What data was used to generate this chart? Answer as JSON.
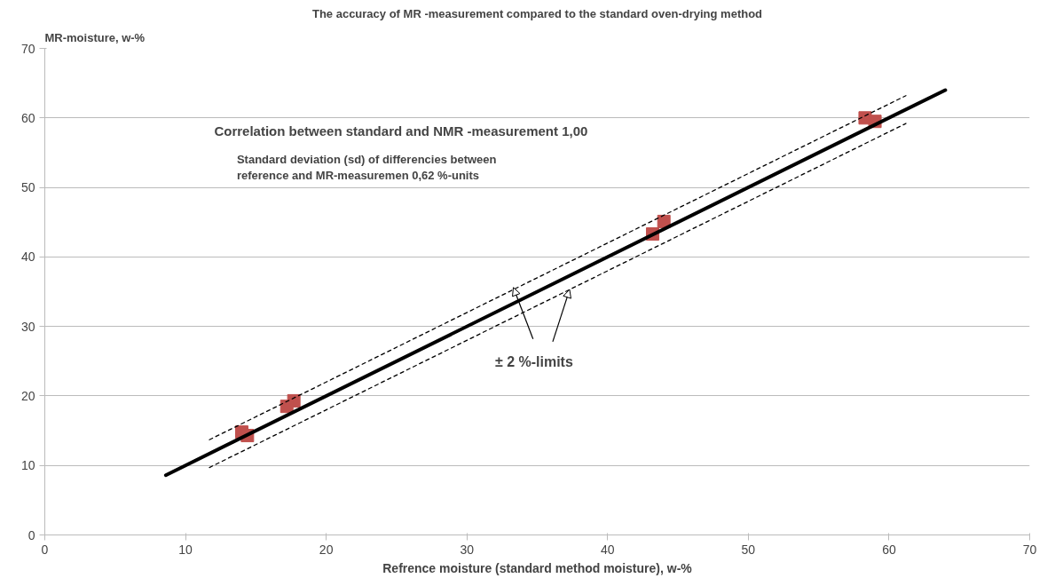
{
  "chart_data": {
    "type": "scatter",
    "title": "The accuracy of MR -measurement compared to the standard oven-drying method",
    "xlabel": "Refrence moisture (standard method moisture), w-%",
    "ylabel": "MR-moisture, w-%",
    "annotations": [
      "Correlation between standard and NMR -measurement 1,00",
      "Standard deviation (sd) of differencies between\nreference and MR-measuremen 0,62 %-units",
      {
        "text": "± 2 %-limits",
        "x": 33.3,
        "y": 35.6
      }
    ],
    "series": [
      {
        "color": "#c0504d",
        "marker": "square",
        "x": [
          14.0,
          14.4,
          17.7,
          17.2,
          44.0,
          43.2,
          58.3,
          59.0
        ],
        "values": [
          14.8,
          14.3,
          19.3,
          18.5,
          45.1,
          43.3,
          60.0,
          59.5
        ]
      },
      {
        "type": "line",
        "color": "#000000",
        "line_style": "solid",
        "x": [
          8.6,
          64
        ],
        "values": [
          8.6,
          64
        ]
      },
      {
        "type": "line",
        "color": "#000000",
        "line_style": "dashed",
        "x": [
          11.7,
          61.2
        ],
        "values": [
          13.7,
          63.2
        ]
      },
      {
        "type": "line",
        "color": "#000000",
        "line_style": "dashed",
        "x": [
          11.7,
          61.2
        ],
        "values": [
          9.7,
          59.2
        ]
      }
    ],
    "xlim": [
      0,
      70
    ],
    "ylim": [
      0,
      70
    ],
    "xticks": [
      0,
      10,
      20,
      30,
      40,
      50,
      60,
      70
    ],
    "yticks": [
      0,
      10,
      20,
      30,
      40,
      50,
      60,
      70
    ],
    "grid": "y"
  }
}
